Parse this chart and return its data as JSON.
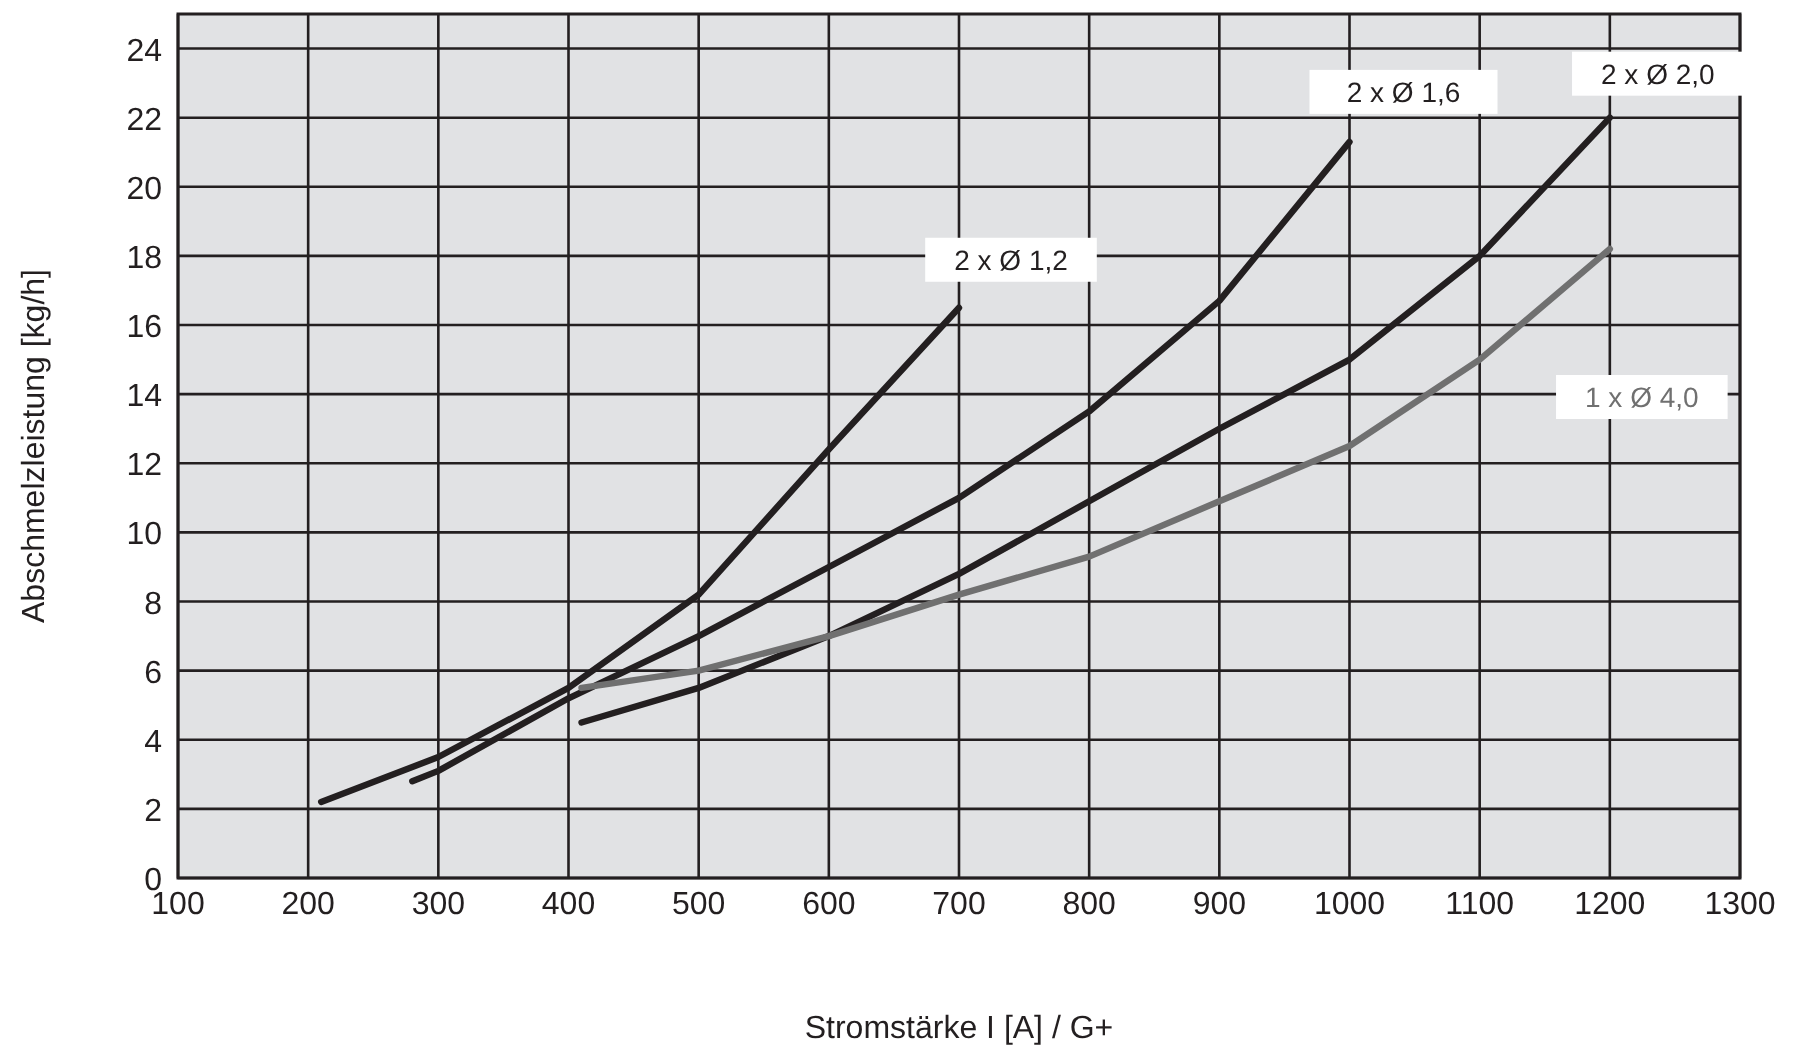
{
  "chart_data": {
    "type": "line",
    "xlabel": "Stromstärke I [A] / G+",
    "ylabel": "Abschmelzleistung [kg/h]",
    "xlim": [
      100,
      1300
    ],
    "xticks": [
      100,
      200,
      300,
      400,
      500,
      600,
      700,
      800,
      900,
      1000,
      1100,
      1200,
      1300
    ],
    "ylim": [
      0,
      25
    ],
    "yticks": [
      0,
      2,
      4,
      6,
      8,
      10,
      12,
      14,
      16,
      18,
      20,
      22,
      24
    ],
    "grid": true,
    "marker": "none",
    "line_style": "solid",
    "series": [
      {
        "name": "2 x Ø 1,2",
        "color": "#231f20",
        "x": [
          210,
          300,
          400,
          500,
          600,
          700
        ],
        "values": [
          2.2,
          3.5,
          5.5,
          8.2,
          12.4,
          16.5
        ]
      },
      {
        "name": "2 x  Ø 1,6",
        "color": "#231f20",
        "x": [
          280,
          300,
          400,
          500,
          600,
          700,
          800,
          900,
          1000
        ],
        "values": [
          2.8,
          3.1,
          5.2,
          7.0,
          9.0,
          11.0,
          13.5,
          16.7,
          21.3
        ]
      },
      {
        "name": "2 x Ø 2,0",
        "color": "#231f20",
        "x": [
          410,
          500,
          600,
          700,
          800,
          900,
          1000,
          1100,
          1200
        ],
        "values": [
          4.5,
          5.5,
          7.0,
          8.8,
          10.9,
          13.0,
          15.0,
          18.0,
          22.0
        ]
      },
      {
        "name": "1 x Ø 4,0",
        "color": "#707070",
        "x": [
          410,
          500,
          600,
          700,
          800,
          900,
          1000,
          1100,
          1200
        ],
        "values": [
          5.5,
          6.0,
          7.0,
          8.2,
          9.3,
          10.9,
          12.5,
          15.0,
          18.2
        ]
      }
    ]
  }
}
